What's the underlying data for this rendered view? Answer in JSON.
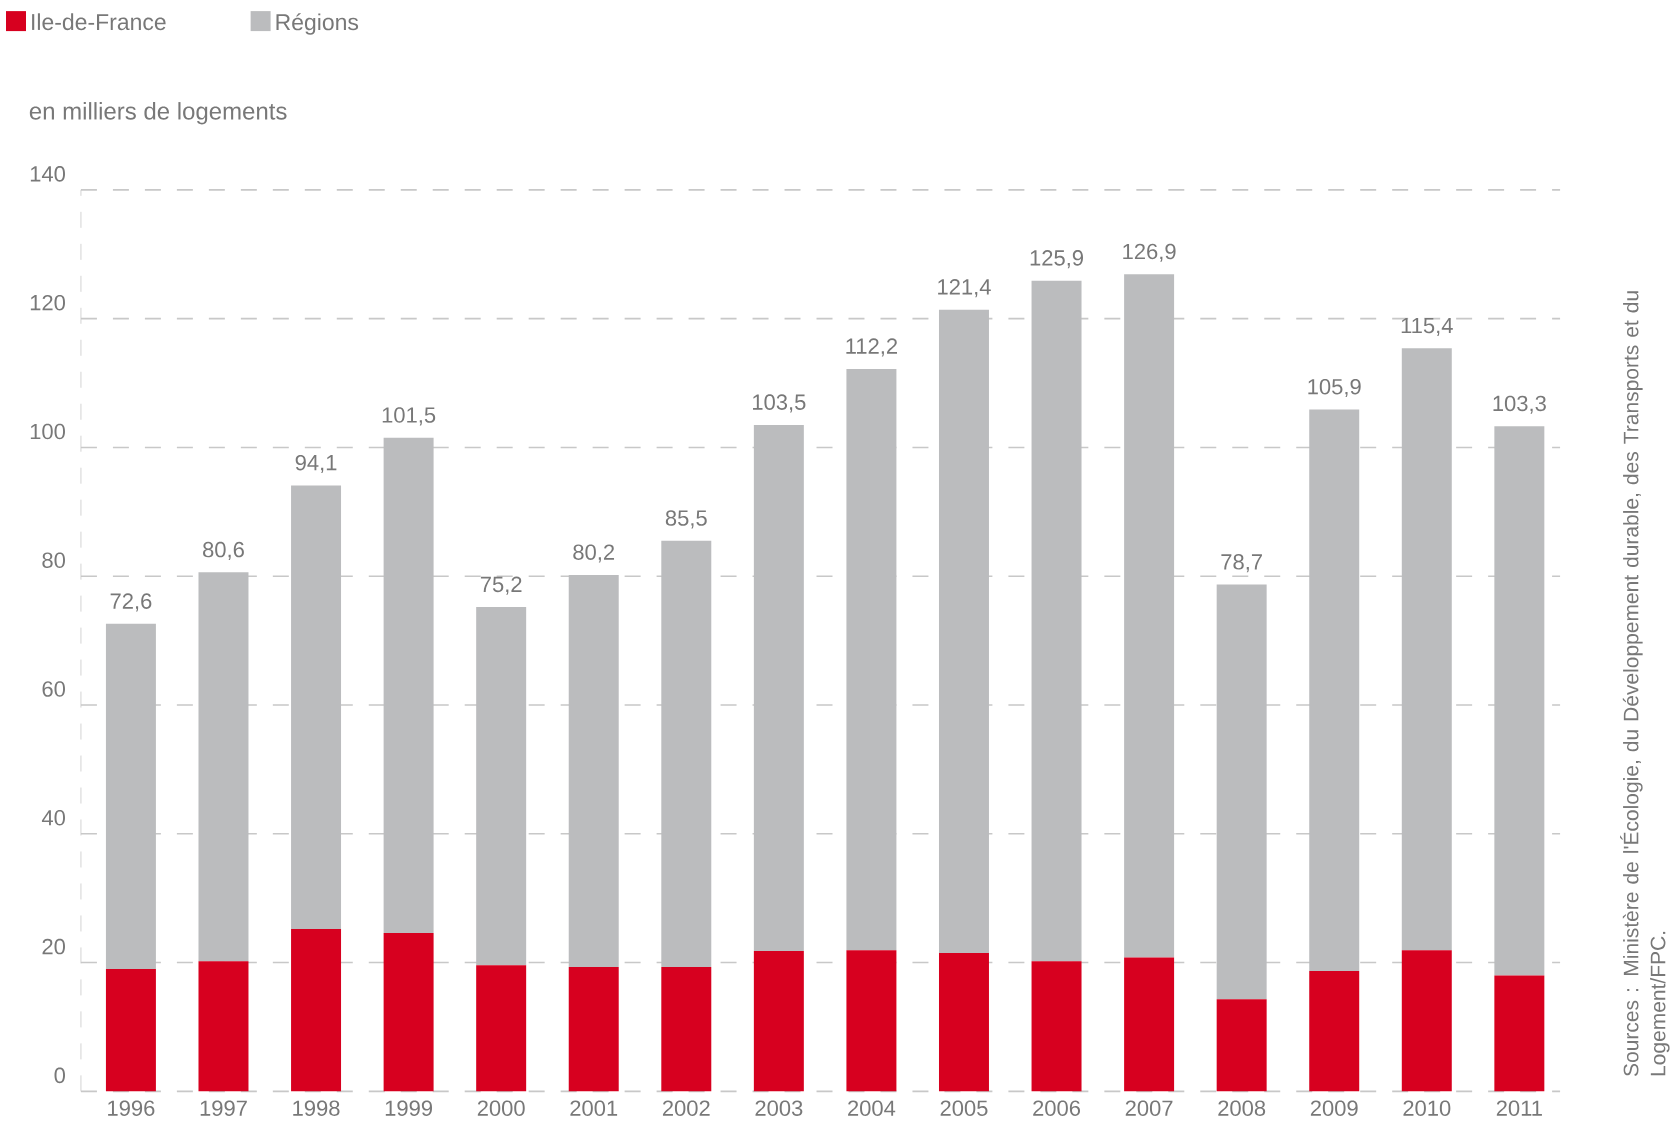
{
  "chart_data": {
    "type": "bar",
    "stacked": true,
    "ylabel": "en milliers de logements",
    "categories": [
      "1996",
      "1997",
      "1998",
      "1999",
      "2000",
      "2001",
      "2002",
      "2003",
      "2004",
      "2005",
      "2006",
      "2007",
      "2008",
      "2009",
      "2010",
      "2011"
    ],
    "series": [
      {
        "name": "Ile-de-France",
        "color": "#d7001f",
        "values": [
          19.0,
          20.2,
          25.2,
          24.6,
          19.6,
          19.3,
          19.3,
          21.8,
          21.9,
          21.5,
          20.2,
          20.8,
          14.3,
          18.7,
          21.9,
          18.0
        ]
      },
      {
        "name": "Régions",
        "color": "#bbbcbe",
        "values": [
          53.6,
          60.4,
          68.9,
          76.9,
          55.6,
          60.9,
          66.2,
          81.7,
          90.3,
          99.9,
          105.7,
          106.1,
          64.4,
          87.2,
          93.5,
          85.3
        ]
      }
    ],
    "totals": [
      "72,6",
      "80,6",
      "94,1",
      "101,5",
      "75,2",
      "80,2",
      "85,5",
      "103,5",
      "112,2",
      "121,4",
      "125,9",
      "126,9",
      "78,7",
      "105,9",
      "115,4",
      "103,3"
    ],
    "ylim": [
      0,
      140
    ],
    "yticks": [
      0,
      20,
      40,
      60,
      80,
      100,
      120,
      140
    ],
    "grid": "y",
    "legend": "top left",
    "annotations": [
      "Sources : Ministère de l'Écologie, du Développement durable, des Transports et du Logement/FPC."
    ]
  }
}
